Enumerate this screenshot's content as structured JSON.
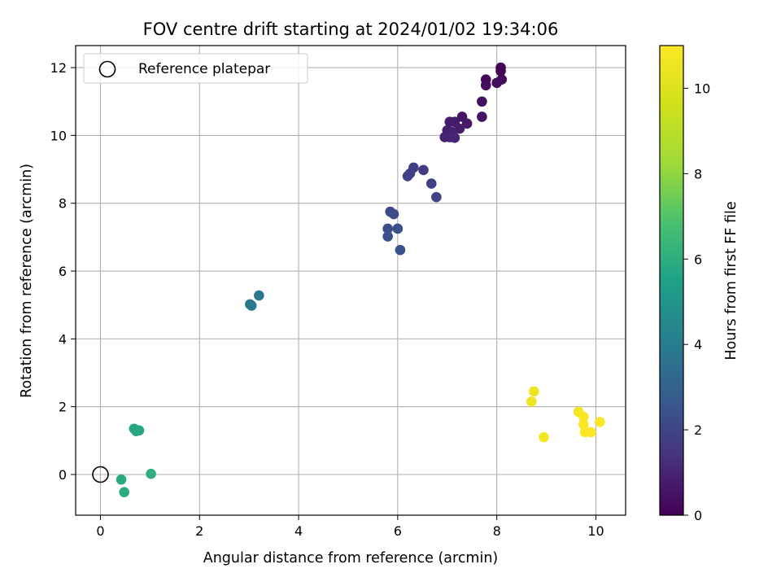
{
  "chart_data": {
    "type": "scatter",
    "title": "FOV centre drift starting at 2024/01/02 19:34:06",
    "xlabel": "Angular distance from reference (arcmin)",
    "ylabel": "Rotation from reference (arcmin)",
    "xlim": [
      -0.5,
      10.6
    ],
    "ylim": [
      -1.2,
      12.65
    ],
    "xticks": [
      0,
      2,
      4,
      6,
      8,
      10
    ],
    "yticks": [
      0,
      2,
      4,
      6,
      8,
      10,
      12
    ],
    "grid": true,
    "colormap": "viridis",
    "colorbar": {
      "label": "Hours from first FF file",
      "range": [
        0,
        11
      ],
      "ticks": [
        0,
        2,
        4,
        6,
        8,
        10
      ]
    },
    "legend": {
      "placement": "top-left",
      "entries": [
        {
          "label": "Reference platepar",
          "marker": "hollow-circle",
          "color": "#000000"
        }
      ]
    },
    "reference_point": {
      "x": 0,
      "y": 0
    },
    "points": [
      {
        "x": 8.08,
        "y": 12.0,
        "hours": 0.05
      },
      {
        "x": 8.08,
        "y": 11.9,
        "hours": 0.1
      },
      {
        "x": 7.78,
        "y": 11.65,
        "hours": 0.2
      },
      {
        "x": 8.1,
        "y": 11.65,
        "hours": 0.25
      },
      {
        "x": 7.78,
        "y": 11.48,
        "hours": 0.3
      },
      {
        "x": 8.0,
        "y": 11.55,
        "hours": 0.35
      },
      {
        "x": 7.7,
        "y": 11.0,
        "hours": 0.45
      },
      {
        "x": 7.7,
        "y": 10.55,
        "hours": 0.5
      },
      {
        "x": 7.3,
        "y": 10.55,
        "hours": 0.6
      },
      {
        "x": 7.4,
        "y": 10.35,
        "hours": 0.65
      },
      {
        "x": 7.05,
        "y": 10.4,
        "hours": 0.7
      },
      {
        "x": 7.15,
        "y": 10.4,
        "hours": 0.75
      },
      {
        "x": 7.25,
        "y": 10.2,
        "hours": 0.8
      },
      {
        "x": 7.0,
        "y": 10.15,
        "hours": 0.85
      },
      {
        "x": 7.1,
        "y": 10.1,
        "hours": 0.9
      },
      {
        "x": 6.95,
        "y": 9.95,
        "hours": 0.95
      },
      {
        "x": 7.05,
        "y": 9.95,
        "hours": 1.0
      },
      {
        "x": 7.15,
        "y": 9.93,
        "hours": 1.05
      },
      {
        "x": 6.32,
        "y": 9.05,
        "hours": 1.7
      },
      {
        "x": 6.52,
        "y": 8.98,
        "hours": 1.75
      },
      {
        "x": 6.25,
        "y": 8.88,
        "hours": 1.8
      },
      {
        "x": 6.2,
        "y": 8.8,
        "hours": 1.85
      },
      {
        "x": 6.68,
        "y": 8.58,
        "hours": 1.9
      },
      {
        "x": 6.78,
        "y": 8.18,
        "hours": 1.95
      },
      {
        "x": 5.85,
        "y": 7.75,
        "hours": 2.2
      },
      {
        "x": 5.92,
        "y": 7.68,
        "hours": 2.25
      },
      {
        "x": 5.8,
        "y": 7.25,
        "hours": 2.3
      },
      {
        "x": 6.0,
        "y": 7.25,
        "hours": 2.35
      },
      {
        "x": 5.8,
        "y": 7.02,
        "hours": 2.4
      },
      {
        "x": 6.05,
        "y": 6.62,
        "hours": 2.45
      },
      {
        "x": 3.2,
        "y": 5.28,
        "hours": 3.8
      },
      {
        "x": 3.02,
        "y": 5.02,
        "hours": 3.85
      },
      {
        "x": 3.05,
        "y": 4.98,
        "hours": 3.9
      },
      {
        "x": 0.68,
        "y": 1.35,
        "hours": 5.7
      },
      {
        "x": 0.72,
        "y": 1.28,
        "hours": 5.75
      },
      {
        "x": 0.78,
        "y": 1.3,
        "hours": 5.8
      },
      {
        "x": 0.42,
        "y": -0.15,
        "hours": 5.9
      },
      {
        "x": 0.48,
        "y": -0.52,
        "hours": 5.95
      },
      {
        "x": 1.02,
        "y": 0.02,
        "hours": 6.05
      },
      {
        "x": 8.75,
        "y": 2.45,
        "hours": 10.55
      },
      {
        "x": 8.7,
        "y": 2.15,
        "hours": 10.6
      },
      {
        "x": 9.65,
        "y": 1.85,
        "hours": 10.8
      },
      {
        "x": 9.75,
        "y": 1.7,
        "hours": 10.85
      },
      {
        "x": 9.75,
        "y": 1.48,
        "hours": 10.9
      },
      {
        "x": 10.08,
        "y": 1.55,
        "hours": 10.95
      },
      {
        "x": 9.78,
        "y": 1.25,
        "hours": 10.95
      },
      {
        "x": 9.9,
        "y": 1.25,
        "hours": 11.0
      },
      {
        "x": 8.95,
        "y": 1.1,
        "hours": 10.7
      }
    ]
  }
}
